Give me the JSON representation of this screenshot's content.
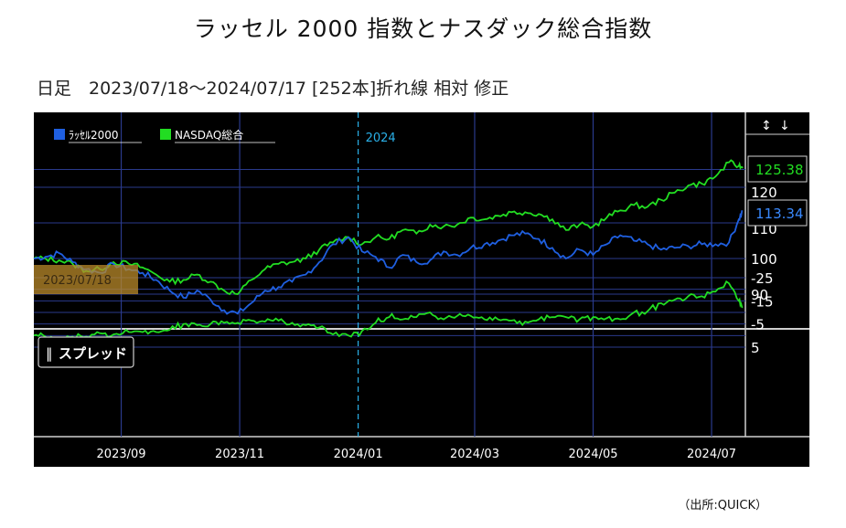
{
  "title": "ラッセル 2000 指数とナスダック総合指数",
  "subtitle": "日足　2023/07/18～2024/07/17 [252本]折れ線 相対 修正",
  "source": "（出所:QUICK）",
  "colors": {
    "background": "#000000",
    "grid": "#2a3a8c",
    "russell": "#1f5fe0",
    "nasdaq": "#22dd22",
    "year_marker": "#2ab0e8",
    "start_box": "#b98a2a"
  },
  "chart_data": {
    "type": "line",
    "main_panel": {
      "series": [
        {
          "name": "ﾗｯｾﾙ2000",
          "last_label": "113.34",
          "points": [
            [
              "2023/07/18",
              100
            ],
            [
              "2023/07/24",
              100.5
            ],
            [
              "2023/07/31",
              101.5
            ],
            [
              "2023/08/07",
              99
            ],
            [
              "2023/08/14",
              97
            ],
            [
              "2023/08/21",
              96
            ],
            [
              "2023/08/28",
              98.5
            ],
            [
              "2023/09/05",
              97
            ],
            [
              "2023/09/12",
              96
            ],
            [
              "2023/09/19",
              94
            ],
            [
              "2023/09/26",
              91
            ],
            [
              "2023/10/03",
              89
            ],
            [
              "2023/10/10",
              91
            ],
            [
              "2023/10/17",
              88.5
            ],
            [
              "2023/10/24",
              85.5
            ],
            [
              "2023/10/31",
              84.5
            ],
            [
              "2023/11/07",
              87.5
            ],
            [
              "2023/11/14",
              91
            ],
            [
              "2023/11/21",
              92
            ],
            [
              "2023/11/28",
              93.5
            ],
            [
              "2023/12/05",
              95.5
            ],
            [
              "2023/12/12",
              99
            ],
            [
              "2023/12/19",
              104
            ],
            [
              "2023/12/27",
              106
            ],
            [
              "2024/01/03",
              102
            ],
            [
              "2024/01/10",
              100.5
            ],
            [
              "2024/01/17",
              97.5
            ],
            [
              "2024/01/24",
              101
            ],
            [
              "2024/01/31",
              99
            ],
            [
              "2024/02/07",
              99.5
            ],
            [
              "2024/02/14",
              102
            ],
            [
              "2024/02/21",
              101
            ],
            [
              "2024/02/28",
              103
            ],
            [
              "2024/03/06",
              104
            ],
            [
              "2024/03/13",
              105
            ],
            [
              "2024/03/20",
              106.5
            ],
            [
              "2024/03/27",
              107
            ],
            [
              "2024/04/03",
              105.5
            ],
            [
              "2024/04/10",
              103
            ],
            [
              "2024/04/17",
              100
            ],
            [
              "2024/04/24",
              102.5
            ],
            [
              "2024/05/01",
              101
            ],
            [
              "2024/05/08",
              104
            ],
            [
              "2024/05/15",
              106.5
            ],
            [
              "2024/05/22",
              105
            ],
            [
              "2024/05/29",
              104
            ],
            [
              "2024/06/05",
              102.5
            ],
            [
              "2024/06/12",
              103
            ],
            [
              "2024/06/19",
              103.5
            ],
            [
              "2024/06/26",
              104
            ],
            [
              "2024/07/03",
              104
            ],
            [
              "2024/07/10",
              104.5
            ],
            [
              "2024/07/15",
              111
            ],
            [
              "2024/07/17",
              113.34
            ]
          ]
        },
        {
          "name": "NASDAQ総合",
          "last_label": "125.38",
          "points": [
            [
              "2023/07/18",
              100
            ],
            [
              "2023/07/24",
              100
            ],
            [
              "2023/07/31",
              99.5
            ],
            [
              "2023/08/07",
              98.5
            ],
            [
              "2023/08/14",
              96.5
            ],
            [
              "2023/08/21",
              97
            ],
            [
              "2023/08/28",
              99
            ],
            [
              "2023/09/05",
              98.5
            ],
            [
              "2023/09/12",
              97.5
            ],
            [
              "2023/09/19",
              95.5
            ],
            [
              "2023/09/26",
              93.5
            ],
            [
              "2023/10/03",
              94
            ],
            [
              "2023/10/10",
              95.5
            ],
            [
              "2023/10/17",
              93.5
            ],
            [
              "2023/10/24",
              91
            ],
            [
              "2023/10/31",
              90
            ],
            [
              "2023/11/07",
              94
            ],
            [
              "2023/11/14",
              97
            ],
            [
              "2023/11/21",
              98.5
            ],
            [
              "2023/11/28",
              99
            ],
            [
              "2023/12/05",
              100
            ],
            [
              "2023/12/12",
              102.5
            ],
            [
              "2023/12/19",
              104.5
            ],
            [
              "2023/12/27",
              106
            ],
            [
              "2024/01/03",
              104
            ],
            [
              "2024/01/10",
              106
            ],
            [
              "2024/01/17",
              105.5
            ],
            [
              "2024/01/24",
              108
            ],
            [
              "2024/01/31",
              107
            ],
            [
              "2024/02/07",
              109.5
            ],
            [
              "2024/02/14",
              109
            ],
            [
              "2024/02/21",
              109.5
            ],
            [
              "2024/02/28",
              111.5
            ],
            [
              "2024/03/06",
              111
            ],
            [
              "2024/03/13",
              112
            ],
            [
              "2024/03/20",
              113
            ],
            [
              "2024/03/27",
              113
            ],
            [
              "2024/04/03",
              112.5
            ],
            [
              "2024/04/10",
              111
            ],
            [
              "2024/04/17",
              108
            ],
            [
              "2024/04/24",
              109.5
            ],
            [
              "2024/05/01",
              109
            ],
            [
              "2024/05/08",
              111.5
            ],
            [
              "2024/05/15",
              113.5
            ],
            [
              "2024/05/22",
              115
            ],
            [
              "2024/05/29",
              114.5
            ],
            [
              "2024/06/05",
              116.5
            ],
            [
              "2024/06/12",
              118.5
            ],
            [
              "2024/06/19",
              120.5
            ],
            [
              "2024/06/26",
              121
            ],
            [
              "2024/07/03",
              123
            ],
            [
              "2024/07/10",
              127
            ],
            [
              "2024/07/15",
              126
            ],
            [
              "2024/07/17",
              125.38
            ]
          ]
        }
      ],
      "y_tick_labels": [
        "120",
        "110",
        "100",
        "90"
      ],
      "year_marker": "2024",
      "start_label": "2023/07/18"
    },
    "spread_panel": {
      "label": "スプレッド",
      "y_tick_labels": [
        "5",
        "-5",
        "-15",
        "-25"
      ]
    },
    "x_tick_labels": [
      "2023/09",
      "2023/11",
      "2024/01",
      "2024/03",
      "2024/05",
      "2024/07"
    ],
    "x_tick_dates": [
      "2023/09/01",
      "2023/11/01",
      "2024/01/01",
      "2024/03/01",
      "2024/05/01",
      "2024/07/01"
    ],
    "x_range": [
      "2023/07/18",
      "2024/07/17"
    ],
    "y_range_main": [
      80,
      130
    ],
    "y_range_spread": [
      -30,
      10
    ],
    "grid": true,
    "legend_position": "top-left"
  }
}
